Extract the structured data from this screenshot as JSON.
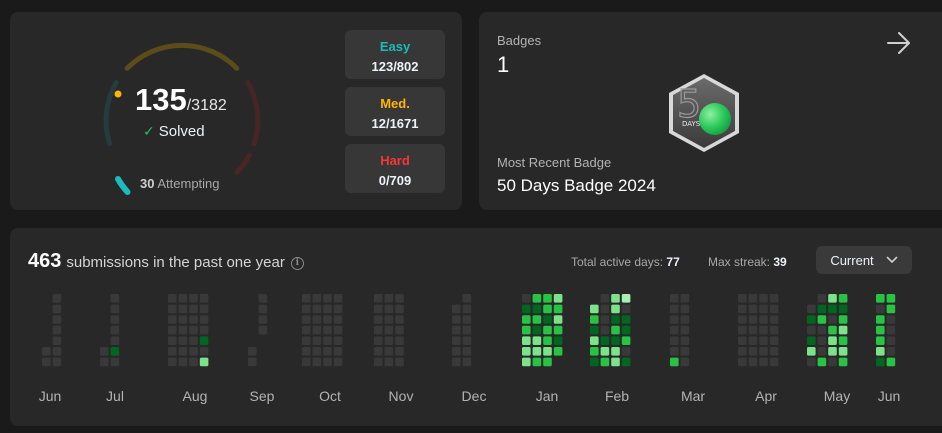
{
  "progress": {
    "solved": "135",
    "total": "/3182",
    "solved_label": "Solved",
    "attempting_count": "30",
    "attempting_label": "Attempting",
    "difficulties": [
      {
        "label": "Easy",
        "value": "123/802",
        "color": "#1cbaba"
      },
      {
        "label": "Med.",
        "value": "12/1671",
        "color": "#ffb700"
      },
      {
        "label": "Hard",
        "value": "0/709",
        "color": "#f63737"
      }
    ]
  },
  "badges": {
    "label": "Badges",
    "count": "1",
    "badge_icon_text": "DAYS",
    "recent_label": "Most Recent Badge",
    "recent_name": "50 Days Badge 2024"
  },
  "submissions": {
    "count": "463",
    "title": "submissions in the past one year",
    "active_days_label": "Total active days:",
    "active_days": "77",
    "max_streak_label": "Max streak:",
    "max_streak": "39",
    "dropdown": "Current",
    "months": [
      "Jun",
      "Jul",
      "Aug",
      "Sep",
      "Oct",
      "Nov",
      "Dec",
      "Jan",
      "Feb",
      "Mar",
      "Apr",
      "May",
      "Jun"
    ],
    "colors": {
      "empty": "#393939",
      "l1": "#016620",
      "l2": "#28c244",
      "l3": "#7ce38b",
      "l4": "#a6f0b0"
    }
  }
}
